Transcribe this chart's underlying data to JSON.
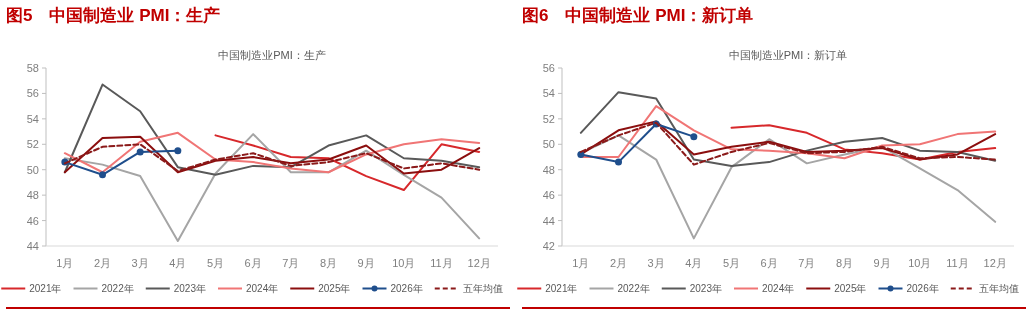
{
  "chart_data": [
    {
      "type": "line",
      "title": "图5　中国制造业 PMI：生产",
      "subtitle": "中国制造业PMI：生产",
      "categories": [
        "1月",
        "2月",
        "3月",
        "4月",
        "5月",
        "6月",
        "7月",
        "8月",
        "9月",
        "10月",
        "11月",
        "12月"
      ],
      "ylim": [
        44,
        58
      ],
      "yticks": [
        44,
        46,
        48,
        50,
        52,
        54,
        56,
        58
      ],
      "legend": "bottom",
      "series": [
        {
          "name": "2021年",
          "color": "#d7282b",
          "values": [
            null,
            null,
            null,
            null,
            52.7,
            51.9,
            51.0,
            50.9,
            49.5,
            48.4,
            52.0,
            51.4
          ]
        },
        {
          "name": "2022年",
          "color": "#a5a5a5",
          "values": [
            50.9,
            50.4,
            49.5,
            44.4,
            49.7,
            52.8,
            49.8,
            49.8,
            51.5,
            49.6,
            47.8,
            44.6
          ]
        },
        {
          "name": "2023年",
          "color": "#595959",
          "values": [
            49.8,
            56.7,
            54.6,
            50.2,
            49.6,
            50.3,
            50.2,
            51.9,
            52.7,
            50.9,
            50.7,
            50.2
          ]
        },
        {
          "name": "2024年",
          "color": "#f07575",
          "values": [
            51.3,
            49.8,
            52.2,
            52.9,
            50.8,
            50.6,
            50.1,
            49.8,
            51.2,
            52.0,
            52.4,
            52.1
          ]
        },
        {
          "name": "2025年",
          "color": "#8b0e0e",
          "values": [
            49.8,
            52.5,
            52.6,
            49.8,
            50.7,
            51.0,
            50.5,
            50.8,
            51.9,
            49.7,
            50.0,
            51.7
          ]
        },
        {
          "name": "2026年",
          "color": "#1f4e8c",
          "marker": "circle",
          "values": [
            50.6,
            49.6,
            51.4,
            51.5,
            null,
            null,
            null,
            null,
            null,
            null,
            null,
            null
          ]
        },
        {
          "name": "五年均值",
          "color": "#8b1a1a",
          "line_style": "dashed",
          "values": [
            50.5,
            51.8,
            52.0,
            49.9,
            50.8,
            51.3,
            50.3,
            50.6,
            51.3,
            50.1,
            50.5,
            50.0
          ]
        }
      ]
    },
    {
      "type": "line",
      "title": "图6　中国制造业 PMI：新订单",
      "subtitle": "中国制造业PMI：新订单",
      "categories": [
        "1月",
        "2月",
        "3月",
        "4月",
        "5月",
        "6月",
        "7月",
        "8月",
        "9月",
        "10月",
        "11月",
        "12月"
      ],
      "ylim": [
        42,
        56
      ],
      "yticks": [
        42,
        44,
        46,
        48,
        50,
        52,
        54,
        56
      ],
      "legend": "bottom",
      "series": [
        {
          "name": "2021年",
          "color": "#d7282b",
          "values": [
            null,
            null,
            null,
            null,
            51.3,
            51.5,
            50.9,
            49.6,
            49.3,
            48.8,
            49.4,
            49.7
          ]
        },
        {
          "name": "2022年",
          "color": "#a5a5a5",
          "values": [
            49.3,
            50.7,
            48.8,
            42.6,
            48.2,
            50.4,
            48.5,
            49.2,
            49.8,
            48.1,
            46.4,
            43.9
          ]
        },
        {
          "name": "2023年",
          "color": "#595959",
          "values": [
            50.9,
            54.1,
            53.6,
            48.8,
            48.3,
            48.6,
            49.5,
            50.2,
            50.5,
            49.5,
            49.4,
            48.7
          ]
        },
        {
          "name": "2024年",
          "color": "#f07575",
          "values": [
            49.0,
            49.0,
            53.0,
            51.1,
            49.6,
            49.5,
            49.3,
            48.9,
            49.9,
            50.0,
            50.8,
            51.0
          ]
        },
        {
          "name": "2025年",
          "color": "#8b0e0e",
          "values": [
            49.2,
            51.1,
            51.8,
            49.2,
            49.8,
            50.2,
            49.4,
            49.5,
            49.7,
            48.8,
            49.2,
            50.8
          ]
        },
        {
          "name": "2026年",
          "color": "#1f4e8c",
          "marker": "circle",
          "values": [
            49.2,
            48.6,
            51.6,
            50.6,
            null,
            null,
            null,
            null,
            null,
            null,
            null,
            null
          ]
        },
        {
          "name": "五年均值",
          "color": "#8b1a1a",
          "line_style": "dashed",
          "values": [
            49.4,
            50.7,
            51.7,
            48.4,
            49.4,
            50.1,
            49.3,
            49.4,
            49.8,
            48.9,
            49.0,
            48.8
          ]
        }
      ]
    }
  ]
}
